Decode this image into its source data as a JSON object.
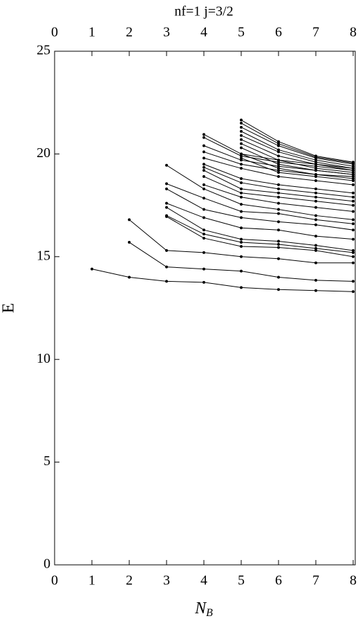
{
  "chart_data": {
    "type": "line",
    "title": "nf=1   j=3/2",
    "xlabel": "N",
    "xlabel_sub": "B",
    "ylabel": "E",
    "color": "#000000",
    "x": [
      1,
      2,
      3,
      4,
      5,
      6,
      7,
      8
    ],
    "xlim": [
      0,
      8
    ],
    "xticks": [
      0,
      1,
      2,
      3,
      4,
      5,
      6,
      7,
      8
    ],
    "ylim": [
      0,
      25
    ],
    "yticks": [
      0,
      5,
      10,
      15,
      20,
      25
    ],
    "series": [
      {
        "values": [
          14.4,
          14.0,
          13.8,
          13.75,
          13.5,
          13.4,
          13.35,
          13.3
        ]
      },
      {
        "values": [
          null,
          15.7,
          14.5,
          14.4,
          14.3,
          14.0,
          13.85,
          13.8
        ]
      },
      {
        "values": [
          null,
          16.8,
          15.3,
          15.2,
          15.0,
          14.9,
          14.7,
          14.7
        ]
      },
      {
        "values": [
          null,
          null,
          16.95,
          15.9,
          15.5,
          15.45,
          15.3,
          15.0
        ]
      },
      {
        "values": [
          null,
          null,
          17.0,
          16.1,
          15.7,
          15.6,
          15.4,
          15.2
        ]
      },
      {
        "values": [
          null,
          null,
          17.4,
          16.3,
          15.85,
          15.75,
          15.55,
          15.3
        ]
      },
      {
        "values": [
          null,
          null,
          17.6,
          16.9,
          16.4,
          16.3,
          16.0,
          15.85
        ]
      },
      {
        "values": [
          null,
          null,
          18.3,
          17.3,
          16.9,
          16.7,
          16.55,
          16.3
        ]
      },
      {
        "values": [
          null,
          null,
          18.55,
          17.85,
          17.2,
          17.1,
          16.8,
          16.6
        ]
      },
      {
        "values": [
          null,
          null,
          19.45,
          18.3,
          17.55,
          17.3,
          17.0,
          16.8
        ]
      },
      {
        "values": [
          null,
          null,
          null,
          18.5,
          17.9,
          17.6,
          17.4,
          17.2
        ]
      },
      {
        "values": [
          null,
          null,
          null,
          18.9,
          18.1,
          17.9,
          17.7,
          17.5
        ]
      },
      {
        "values": [
          null,
          null,
          null,
          19.2,
          18.3,
          18.1,
          17.9,
          17.7
        ]
      },
      {
        "values": [
          null,
          null,
          null,
          19.35,
          18.6,
          18.3,
          18.1,
          17.9
        ]
      },
      {
        "values": [
          null,
          null,
          null,
          19.5,
          18.8,
          18.5,
          18.3,
          18.1
        ]
      },
      {
        "values": [
          null,
          null,
          null,
          19.8,
          19.3,
          18.9,
          18.7,
          18.5
        ]
      },
      {
        "values": [
          null,
          null,
          null,
          20.1,
          19.5,
          19.2,
          19.0,
          18.8
        ]
      },
      {
        "values": [
          null,
          null,
          null,
          20.4,
          19.7,
          19.4,
          19.2,
          19.0
        ]
      },
      {
        "values": [
          null,
          null,
          null,
          20.8,
          19.9,
          19.6,
          19.4,
          19.2
        ]
      },
      {
        "values": [
          null,
          null,
          null,
          20.95,
          20.0,
          19.7,
          19.5,
          19.3
        ]
      },
      {
        "values": [
          null,
          null,
          null,
          null,
          19.8,
          19.1,
          18.9,
          18.7
        ]
      },
      {
        "values": [
          null,
          null,
          null,
          null,
          20.0,
          19.3,
          19.0,
          18.9
        ]
      },
      {
        "values": [
          null,
          null,
          null,
          null,
          20.3,
          19.5,
          19.2,
          19.0
        ]
      },
      {
        "values": [
          null,
          null,
          null,
          null,
          20.5,
          19.7,
          19.3,
          19.1
        ]
      },
      {
        "values": [
          null,
          null,
          null,
          null,
          20.7,
          19.9,
          19.5,
          19.2
        ]
      },
      {
        "values": [
          null,
          null,
          null,
          null,
          20.9,
          20.1,
          19.6,
          19.3
        ]
      },
      {
        "values": [
          null,
          null,
          null,
          null,
          21.1,
          20.2,
          19.7,
          19.4
        ]
      },
      {
        "values": [
          null,
          null,
          null,
          null,
          21.3,
          20.4,
          19.8,
          19.5
        ]
      },
      {
        "values": [
          null,
          null,
          null,
          null,
          21.5,
          20.5,
          19.85,
          19.55
        ]
      },
      {
        "values": [
          null,
          null,
          null,
          null,
          21.65,
          20.6,
          19.9,
          19.6
        ]
      }
    ]
  }
}
